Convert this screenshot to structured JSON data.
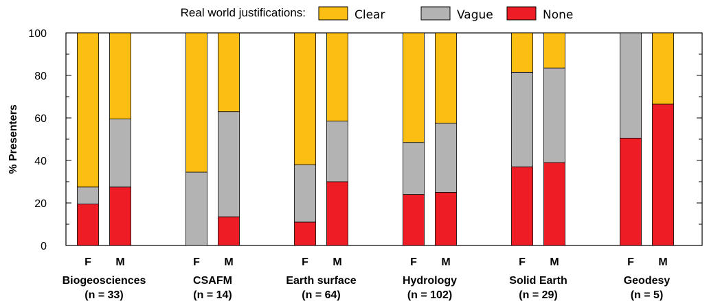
{
  "chart_data": {
    "type": "bar",
    "stacked": true,
    "ylabel": "% Presenters",
    "ylim": [
      0,
      100
    ],
    "yticks": [
      0,
      20,
      40,
      60,
      80,
      100
    ],
    "legend": {
      "title": "Real world justifications:",
      "placement": "top",
      "entries": [
        "Clear",
        "Vague",
        "None"
      ]
    },
    "colors": {
      "None": "#ee1c24",
      "Vague": "#b3b3b3",
      "Clear": "#fdbe13"
    },
    "groups": [
      {
        "name": "Biogeosciences",
        "n_label": "(n = 33)",
        "bars": [
          {
            "label": "F",
            "None": 19.5,
            "Vague": 8,
            "Clear": 72.5
          },
          {
            "label": "M",
            "None": 27.5,
            "Vague": 32,
            "Clear": 40.5
          }
        ]
      },
      {
        "name": "CSAFM",
        "n_label": "(n = 14)",
        "bars": [
          {
            "label": "F",
            "None": 0,
            "Vague": 34.5,
            "Clear": 65.5
          },
          {
            "label": "M",
            "None": 13.5,
            "Vague": 49.5,
            "Clear": 37
          }
        ]
      },
      {
        "name": "Earth surface",
        "n_label": "(n = 64)",
        "bars": [
          {
            "label": "F",
            "None": 11,
            "Vague": 27,
            "Clear": 62
          },
          {
            "label": "M",
            "None": 30,
            "Vague": 28.5,
            "Clear": 41.5
          }
        ]
      },
      {
        "name": "Hydrology",
        "n_label": "(n = 102)",
        "bars": [
          {
            "label": "F",
            "None": 24,
            "Vague": 24.5,
            "Clear": 51.5
          },
          {
            "label": "M",
            "None": 25,
            "Vague": 32.5,
            "Clear": 42.5
          }
        ]
      },
      {
        "name": "Solid Earth",
        "n_label": "(n = 29)",
        "bars": [
          {
            "label": "F",
            "None": 37,
            "Vague": 44.5,
            "Clear": 18.5
          },
          {
            "label": "M",
            "None": 39,
            "Vague": 44.5,
            "Clear": 16.5
          }
        ]
      },
      {
        "name": "Geodesy",
        "n_label": "(n = 5)",
        "bars": [
          {
            "label": "F",
            "None": 50.5,
            "Vague": 49.5,
            "Clear": 0
          },
          {
            "label": "M",
            "None": 66.5,
            "Vague": 0,
            "Clear": 33.5
          }
        ]
      }
    ]
  }
}
